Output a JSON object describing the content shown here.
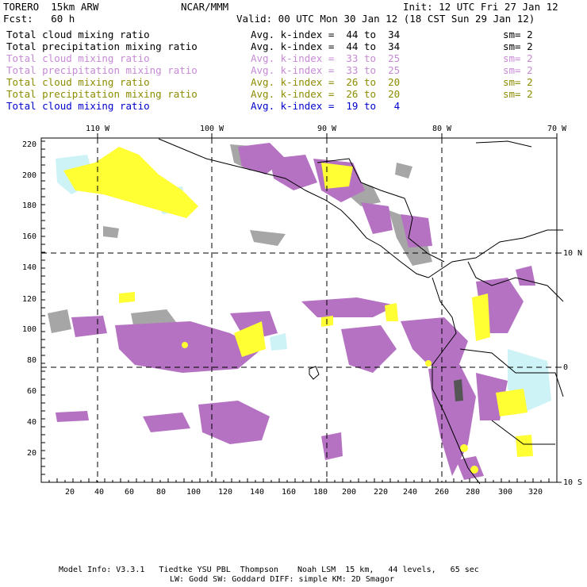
{
  "header": {
    "model": "TORERO  15km ARW",
    "org": "NCAR/MMM",
    "init": "Init: 12 UTC Fri 27 Jan 12",
    "fcst": "Fcst:   60 h",
    "valid": "Valid: 00 UTC Mon 30 Jan 12 (18 CST Sun 29 Jan 12)"
  },
  "legend": [
    {
      "field": "Total cloud mixing ratio",
      "kidx": "Avg. k-index =  44 to  34",
      "sm": "sm= 2",
      "color": "#000000"
    },
    {
      "field": "Total precipitation mixing ratio",
      "kidx": "Avg. k-index =  44 to  34",
      "sm": "sm= 2",
      "color": "#000000"
    },
    {
      "field": "Total cloud mixing ratio",
      "kidx": "Avg. k-index =  33 to  25",
      "sm": "sm= 2",
      "color": "#c78ad6"
    },
    {
      "field": "Total precipitation mixing ratio",
      "kidx": "Avg. k-index =  33 to  25",
      "sm": "sm= 2",
      "color": "#c78ad6"
    },
    {
      "field": "Total cloud mixing ratio",
      "kidx": "Avg. k-index =  26 to  20",
      "sm": "sm= 2",
      "color": "#8c8c00"
    },
    {
      "field": "Total precipitation mixing ratio",
      "kidx": "Avg. k-index =  26 to  20",
      "sm": "sm= 2",
      "color": "#8c8c00"
    },
    {
      "field": "Total cloud mixing ratio",
      "kidx": "Avg. k-index =  19 to   4",
      "sm": "",
      "color": "#0000cc"
    }
  ],
  "map": {
    "lon_labels": [
      "110 W",
      "100 W",
      "90 W",
      "80 W",
      "70 W"
    ],
    "lat_labels": [
      "10 N",
      "0",
      "10 S"
    ],
    "x_ticks": [
      "20",
      "40",
      "60",
      "80",
      "100",
      "120",
      "140",
      "160",
      "180",
      "200",
      "220",
      "240",
      "260",
      "280",
      "300",
      "320"
    ],
    "y_ticks": [
      "220",
      "200",
      "180",
      "160",
      "140",
      "120",
      "100",
      "80",
      "60",
      "40",
      "20"
    ],
    "colors": {
      "gray": "#a6a6a6",
      "purple": "#b572c2",
      "yellow": "#ffff33",
      "cyan": "#cdf3f6",
      "dark": "#555555"
    }
  },
  "footer": {
    "line1": "Model Info: V3.3.1   Tiedtke YSU PBL  Thompson    Noah LSM  15 km,   44 levels,   65 sec",
    "line2": "LW: Godd SW: Goddard DIFF: simple KM: 2D Smagor"
  }
}
